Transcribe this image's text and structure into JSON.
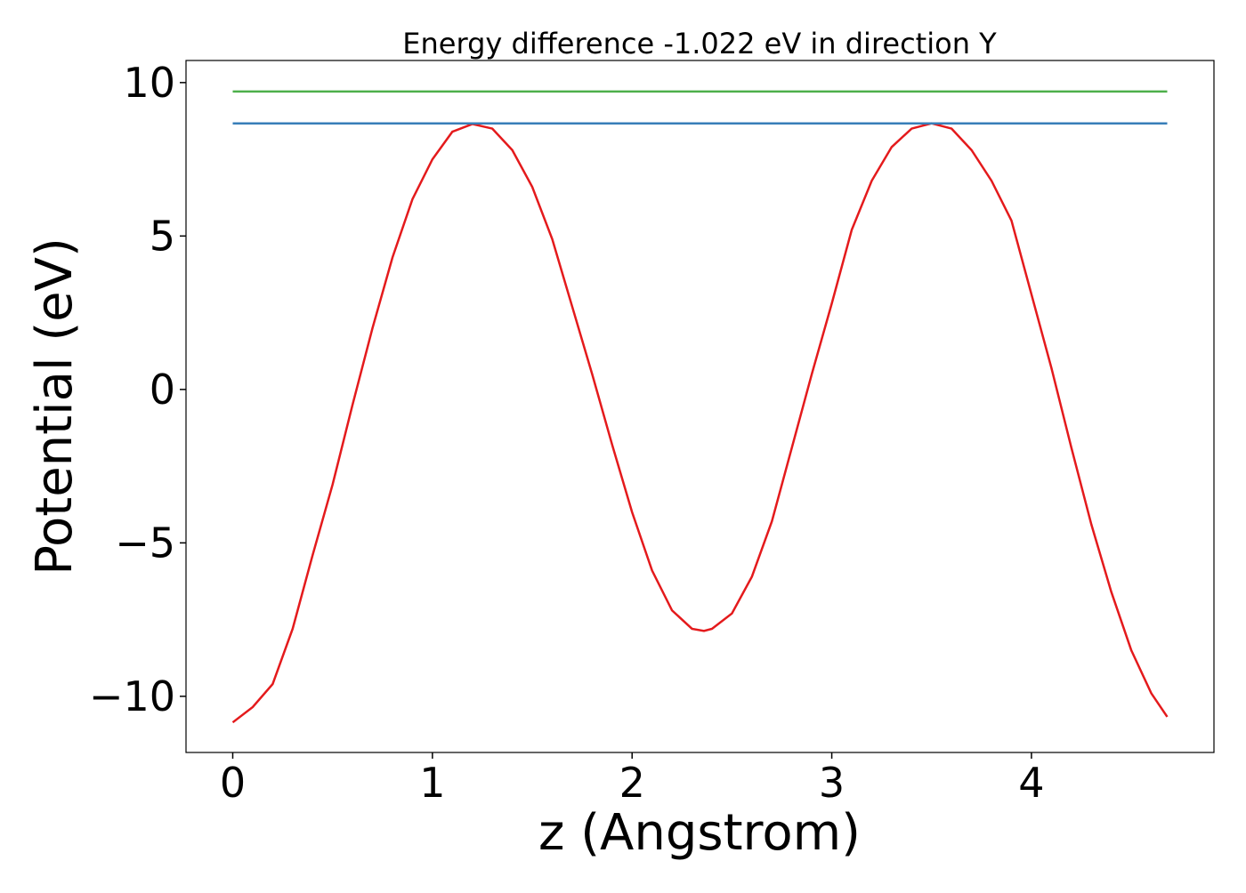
{
  "chart_data": {
    "type": "line",
    "title": "Energy difference -1.022 eV in direction Y",
    "x_label": "z (Angstrom)",
    "y_label": "Potential (eV)",
    "xlim": [
      -0.234,
      4.914
    ],
    "ylim": [
      -11.83,
      10.72
    ],
    "xticks": [
      0,
      1,
      2,
      3,
      4
    ],
    "yticks": [
      {
        "value": -10,
        "label": "−10"
      },
      {
        "value": -5,
        "label": "−5"
      },
      0,
      5,
      10
    ],
    "grid": false,
    "series": [
      {
        "color": "#e41a1c",
        "x": [
          0,
          0.1,
          0.2,
          0.3,
          0.4,
          0.5,
          0.6,
          0.7,
          0.8,
          0.9,
          1.0,
          1.1,
          1.2,
          1.3,
          1.4,
          1.5,
          1.6,
          1.7,
          1.8,
          1.9,
          2.0,
          2.1,
          2.2,
          2.3,
          2.36,
          2.4,
          2.5,
          2.6,
          2.7,
          2.8,
          2.9,
          3.0,
          3.1,
          3.2,
          3.3,
          3.4,
          3.5,
          3.6,
          3.7,
          3.8,
          3.9,
          4.0,
          4.1,
          4.2,
          4.3,
          4.4,
          4.5,
          4.6,
          4.68
        ],
        "values": [
          -10.85,
          -10.35,
          -9.6,
          -7.8,
          -5.4,
          -3.1,
          -0.5,
          2.0,
          4.3,
          6.2,
          7.5,
          8.4,
          8.65,
          8.5,
          7.8,
          6.6,
          4.9,
          2.7,
          0.5,
          -1.8,
          -4.0,
          -5.9,
          -7.2,
          -7.8,
          -7.87,
          -7.8,
          -7.3,
          -6.1,
          -4.3,
          -1.9,
          0.5,
          2.8,
          5.2,
          6.8,
          7.9,
          8.5,
          8.67,
          8.5,
          7.8,
          6.8,
          5.5,
          3.1,
          0.7,
          -1.9,
          -4.4,
          -6.6,
          -8.5,
          -9.9,
          -10.67
        ]
      },
      {
        "color": "#377eb8",
        "x": [
          0,
          4.68
        ],
        "values": [
          8.67,
          8.67
        ]
      },
      {
        "color": "#4daf4a",
        "x": [
          0,
          4.68
        ],
        "values": [
          9.71,
          9.71
        ]
      }
    ]
  }
}
